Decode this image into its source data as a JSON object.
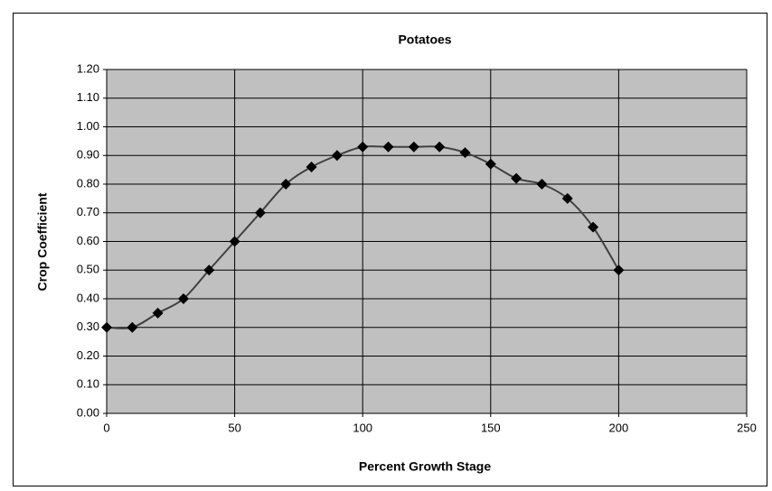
{
  "chart_data": {
    "type": "line",
    "title": "Potatoes",
    "xlabel": "Percent Growth Stage",
    "ylabel": "Crop Coefficient",
    "x": [
      0,
      10,
      20,
      30,
      40,
      50,
      60,
      70,
      80,
      90,
      100,
      110,
      120,
      130,
      140,
      150,
      160,
      170,
      180,
      190,
      200
    ],
    "series": [
      {
        "name": "Potatoes",
        "color": "#000000",
        "values": [
          0.3,
          0.3,
          0.35,
          0.4,
          0.5,
          0.6,
          0.7,
          0.8,
          0.86,
          0.9,
          0.93,
          0.93,
          0.93,
          0.93,
          0.91,
          0.87,
          0.82,
          0.8,
          0.75,
          0.65,
          0.5
        ]
      }
    ],
    "xlim": [
      0,
      250
    ],
    "xticks": [
      0,
      50,
      100,
      150,
      200,
      250
    ],
    "ylim": [
      0,
      1.2
    ],
    "yticks": [
      {
        "value": 0,
        "label": "0.00"
      },
      {
        "value": 0.1,
        "label": "0.10"
      },
      {
        "value": 0.2,
        "label": "0.20"
      },
      {
        "value": 0.3,
        "label": "0.30"
      },
      {
        "value": 0.4,
        "label": "0.40"
      },
      {
        "value": 0.5,
        "label": "0.50"
      },
      {
        "value": 0.6,
        "label": "0.60"
      },
      {
        "value": 0.7,
        "label": "0.70"
      },
      {
        "value": 0.8,
        "label": "0.80"
      },
      {
        "value": 0.9,
        "label": "0.90"
      },
      {
        "value": 1.0,
        "label": "1.00"
      },
      {
        "value": 1.1,
        "label": "1.10"
      },
      {
        "value": 1.2,
        "label": "1.20"
      }
    ],
    "grid": true,
    "plot_background": "#c0c0c0"
  }
}
